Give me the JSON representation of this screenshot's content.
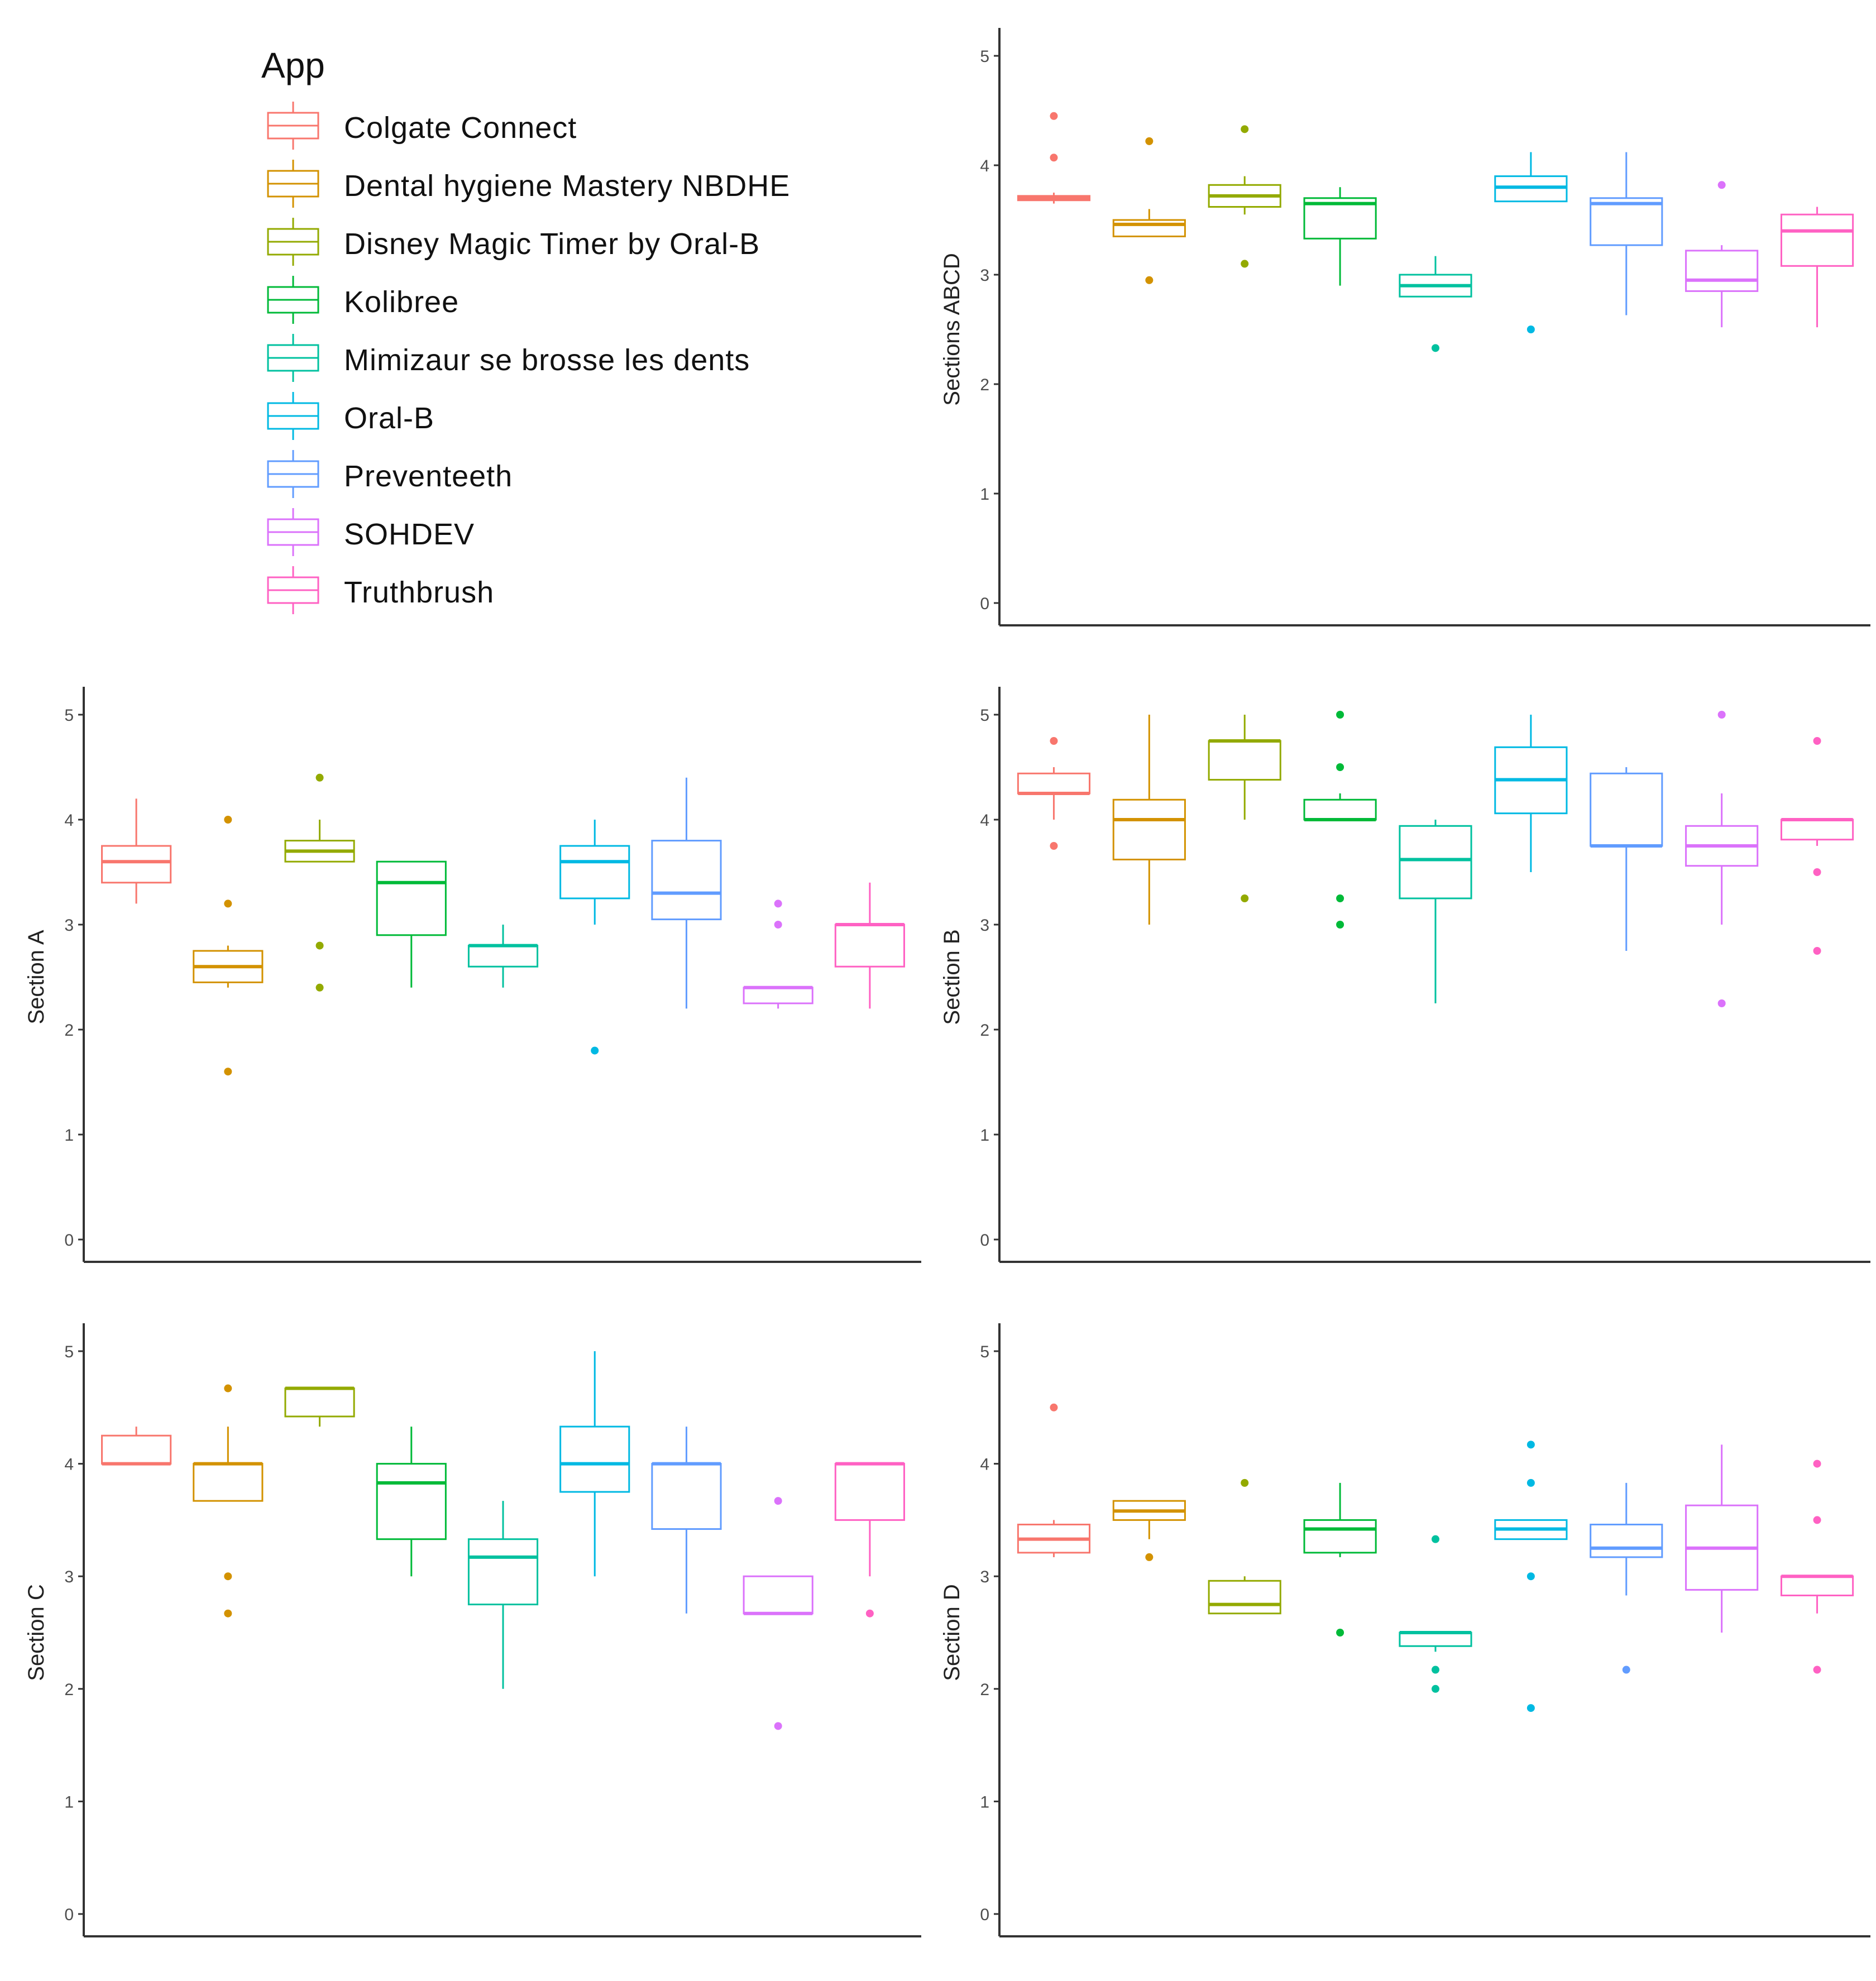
{
  "legend": {
    "title": "App",
    "items": [
      {
        "label": "Colgate Connect",
        "color": "#F8766D"
      },
      {
        "label": "Dental hygiene Mastery NBDHE",
        "color": "#D39200"
      },
      {
        "label": "Disney Magic Timer by Oral-B",
        "color": "#93AA00"
      },
      {
        "label": "Kolibree",
        "color": "#00BA38"
      },
      {
        "label": "Mimizaur se brosse les dents",
        "color": "#00C19F"
      },
      {
        "label": "Oral-B",
        "color": "#00B9E3"
      },
      {
        "label": "Preventeeth",
        "color": "#619CFF"
      },
      {
        "label": "SOHDEV",
        "color": "#DB72FB"
      },
      {
        "label": "Truthbrush",
        "color": "#FF61C3"
      }
    ]
  },
  "chart_data": [
    {
      "type": "boxplot",
      "title": "",
      "xlabel": "",
      "ylabel": "Sections ABCD",
      "ylim": [
        0,
        5
      ],
      "yticks": [
        "0",
        "1",
        "2",
        "3",
        "4",
        "5"
      ],
      "categories": [
        "Colgate Connect",
        "Dental hygiene Mastery NBDHE",
        "Disney Magic Timer by Oral-B",
        "Kolibree",
        "Mimizaur se brosse les dents",
        "Oral-B",
        "Preventeeth",
        "SOHDEV",
        "Truthbrush"
      ],
      "boxes": [
        {
          "low": 3.65,
          "q1": 3.68,
          "median": 3.7,
          "q3": 3.72,
          "high": 3.75,
          "outliers": [
            4.45,
            4.07
          ]
        },
        {
          "low": 3.35,
          "q1": 3.35,
          "median": 3.46,
          "q3": 3.5,
          "high": 3.6,
          "outliers": [
            4.22,
            2.95
          ]
        },
        {
          "low": 3.55,
          "q1": 3.62,
          "median": 3.72,
          "q3": 3.82,
          "high": 3.9,
          "outliers": [
            4.33,
            3.1
          ]
        },
        {
          "low": 2.9,
          "q1": 3.33,
          "median": 3.65,
          "q3": 3.7,
          "high": 3.8,
          "outliers": []
        },
        {
          "low": 2.8,
          "q1": 2.8,
          "median": 2.9,
          "q3": 3.0,
          "high": 3.17,
          "outliers": [
            2.33
          ]
        },
        {
          "low": 3.67,
          "q1": 3.67,
          "median": 3.8,
          "q3": 3.9,
          "high": 4.12,
          "outliers": [
            2.5
          ]
        },
        {
          "low": 2.63,
          "q1": 3.27,
          "median": 3.65,
          "q3": 3.7,
          "high": 4.12,
          "outliers": []
        },
        {
          "low": 2.52,
          "q1": 2.85,
          "median": 2.95,
          "q3": 3.22,
          "high": 3.27,
          "outliers": [
            3.82
          ]
        },
        {
          "low": 2.52,
          "q1": 3.08,
          "median": 3.4,
          "q3": 3.55,
          "high": 3.62,
          "outliers": []
        }
      ]
    },
    {
      "type": "boxplot",
      "title": "",
      "xlabel": "",
      "ylabel": "Section A",
      "ylim": [
        0,
        5
      ],
      "yticks": [
        "0",
        "1",
        "2",
        "3",
        "4",
        "5"
      ],
      "categories": [
        "Colgate Connect",
        "Dental hygiene Mastery NBDHE",
        "Disney Magic Timer by Oral-B",
        "Kolibree",
        "Mimizaur se brosse les dents",
        "Oral-B",
        "Preventeeth",
        "SOHDEV",
        "Truthbrush"
      ],
      "boxes": [
        {
          "low": 3.2,
          "q1": 3.4,
          "median": 3.6,
          "q3": 3.75,
          "high": 4.2,
          "outliers": []
        },
        {
          "low": 2.4,
          "q1": 2.45,
          "median": 2.6,
          "q3": 2.75,
          "high": 2.8,
          "outliers": [
            4.0,
            3.2,
            1.6
          ]
        },
        {
          "low": 3.6,
          "q1": 3.6,
          "median": 3.7,
          "q3": 3.8,
          "high": 4.0,
          "outliers": [
            4.4,
            2.8,
            2.4
          ]
        },
        {
          "low": 2.4,
          "q1": 2.9,
          "median": 3.4,
          "q3": 3.6,
          "high": 3.6,
          "outliers": []
        },
        {
          "low": 2.4,
          "q1": 2.6,
          "median": 2.8,
          "q3": 2.8,
          "high": 3.0,
          "outliers": []
        },
        {
          "low": 3.0,
          "q1": 3.25,
          "median": 3.6,
          "q3": 3.75,
          "high": 4.0,
          "outliers": [
            1.8
          ]
        },
        {
          "low": 2.2,
          "q1": 3.05,
          "median": 3.3,
          "q3": 3.8,
          "high": 4.4,
          "outliers": []
        },
        {
          "low": 2.2,
          "q1": 2.25,
          "median": 2.4,
          "q3": 2.4,
          "high": 2.4,
          "outliers": [
            3.2,
            3.0
          ]
        },
        {
          "low": 2.2,
          "q1": 2.6,
          "median": 3.0,
          "q3": 3.0,
          "high": 3.4,
          "outliers": []
        }
      ]
    },
    {
      "type": "boxplot",
      "title": "",
      "xlabel": "",
      "ylabel": "Section B",
      "ylim": [
        0,
        5
      ],
      "yticks": [
        "0",
        "1",
        "2",
        "3",
        "4",
        "5"
      ],
      "categories": [
        "Colgate Connect",
        "Dental hygiene Mastery NBDHE",
        "Disney Magic Timer by Oral-B",
        "Kolibree",
        "Mimizaur se brosse les dents",
        "Oral-B",
        "Preventeeth",
        "SOHDEV",
        "Truthbrush"
      ],
      "boxes": [
        {
          "low": 4.0,
          "q1": 4.25,
          "median": 4.25,
          "q3": 4.44,
          "high": 4.5,
          "outliers": [
            4.75,
            3.75
          ]
        },
        {
          "low": 3.0,
          "q1": 3.62,
          "median": 4.0,
          "q3": 4.19,
          "high": 5.0,
          "outliers": []
        },
        {
          "low": 4.0,
          "q1": 4.38,
          "median": 4.75,
          "q3": 4.75,
          "high": 5.0,
          "outliers": [
            3.25
          ]
        },
        {
          "low": 4.0,
          "q1": 4.0,
          "median": 4.0,
          "q3": 4.19,
          "high": 4.25,
          "outliers": [
            5.0,
            4.5,
            3.25,
            3.0
          ]
        },
        {
          "low": 2.25,
          "q1": 3.25,
          "median": 3.62,
          "q3": 3.94,
          "high": 4.0,
          "outliers": []
        },
        {
          "low": 3.5,
          "q1": 4.06,
          "median": 4.38,
          "q3": 4.69,
          "high": 5.0,
          "outliers": []
        },
        {
          "low": 2.75,
          "q1": 3.75,
          "median": 3.75,
          "q3": 4.44,
          "high": 4.5,
          "outliers": []
        },
        {
          "low": 3.0,
          "q1": 3.56,
          "median": 3.75,
          "q3": 3.94,
          "high": 4.25,
          "outliers": [
            5.0,
            2.25
          ]
        },
        {
          "low": 3.75,
          "q1": 3.81,
          "median": 4.0,
          "q3": 4.0,
          "high": 4.0,
          "outliers": [
            4.75,
            3.5,
            2.75
          ]
        }
      ]
    },
    {
      "type": "boxplot",
      "title": "",
      "xlabel": "",
      "ylabel": "Section C",
      "ylim": [
        0,
        5
      ],
      "yticks": [
        "0",
        "1",
        "2",
        "3",
        "4",
        "5"
      ],
      "categories": [
        "Colgate Connect",
        "Dental hygiene Mastery NBDHE",
        "Disney Magic Timer by Oral-B",
        "Kolibree",
        "Mimizaur se brosse les dents",
        "Oral-B",
        "Preventeeth",
        "SOHDEV",
        "Truthbrush"
      ],
      "boxes": [
        {
          "low": 4.0,
          "q1": 4.0,
          "median": 4.0,
          "q3": 4.25,
          "high": 4.33,
          "outliers": []
        },
        {
          "low": 3.67,
          "q1": 3.67,
          "median": 4.0,
          "q3": 4.0,
          "high": 4.33,
          "outliers": [
            4.67,
            3.0,
            2.67
          ]
        },
        {
          "low": 4.33,
          "q1": 4.42,
          "median": 4.67,
          "q3": 4.67,
          "high": 4.67,
          "outliers": []
        },
        {
          "low": 3.0,
          "q1": 3.33,
          "median": 3.83,
          "q3": 4.0,
          "high": 4.33,
          "outliers": []
        },
        {
          "low": 2.0,
          "q1": 2.75,
          "median": 3.17,
          "q3": 3.33,
          "high": 3.67,
          "outliers": []
        },
        {
          "low": 3.0,
          "q1": 3.75,
          "median": 4.0,
          "q3": 4.33,
          "high": 5.0,
          "outliers": []
        },
        {
          "low": 2.67,
          "q1": 3.42,
          "median": 4.0,
          "q3": 4.0,
          "high": 4.33,
          "outliers": []
        },
        {
          "low": 2.67,
          "q1": 2.67,
          "median": 2.67,
          "q3": 3.0,
          "high": 3.0,
          "outliers": [
            3.67,
            1.67
          ]
        },
        {
          "low": 3.0,
          "q1": 3.5,
          "median": 4.0,
          "q3": 4.0,
          "high": 4.0,
          "outliers": [
            2.67
          ]
        }
      ]
    },
    {
      "type": "boxplot",
      "title": "",
      "xlabel": "",
      "ylabel": "Section D",
      "ylim": [
        0,
        5
      ],
      "yticks": [
        "0",
        "1",
        "2",
        "3",
        "4",
        "5"
      ],
      "categories": [
        "Colgate Connect",
        "Dental hygiene Mastery NBDHE",
        "Disney Magic Timer by Oral-B",
        "Kolibree",
        "Mimizaur se brosse les dents",
        "Oral-B",
        "Preventeeth",
        "SOHDEV",
        "Truthbrush"
      ],
      "boxes": [
        {
          "low": 3.17,
          "q1": 3.21,
          "median": 3.33,
          "q3": 3.46,
          "high": 3.5,
          "outliers": [
            4.5
          ]
        },
        {
          "low": 3.33,
          "q1": 3.5,
          "median": 3.58,
          "q3": 3.67,
          "high": 3.67,
          "outliers": [
            3.17
          ]
        },
        {
          "low": 2.67,
          "q1": 2.67,
          "median": 2.75,
          "q3": 2.96,
          "high": 3.0,
          "outliers": [
            3.83
          ]
        },
        {
          "low": 3.17,
          "q1": 3.21,
          "median": 3.42,
          "q3": 3.5,
          "high": 3.83,
          "outliers": [
            2.5
          ]
        },
        {
          "low": 2.33,
          "q1": 2.38,
          "median": 2.5,
          "q3": 2.5,
          "high": 2.5,
          "outliers": [
            3.33,
            2.17,
            2.0
          ]
        },
        {
          "low": 3.33,
          "q1": 3.33,
          "median": 3.42,
          "q3": 3.5,
          "high": 3.5,
          "outliers": [
            4.17,
            3.83,
            3.0,
            1.83
          ]
        },
        {
          "low": 2.83,
          "q1": 3.17,
          "median": 3.25,
          "q3": 3.46,
          "high": 3.83,
          "outliers": [
            2.17
          ]
        },
        {
          "low": 2.5,
          "q1": 2.88,
          "median": 3.25,
          "q3": 3.63,
          "high": 4.17,
          "outliers": []
        },
        {
          "low": 2.67,
          "q1": 2.83,
          "median": 3.0,
          "q3": 3.0,
          "high": 3.0,
          "outliers": [
            4.0,
            3.5,
            2.17
          ]
        }
      ]
    }
  ]
}
